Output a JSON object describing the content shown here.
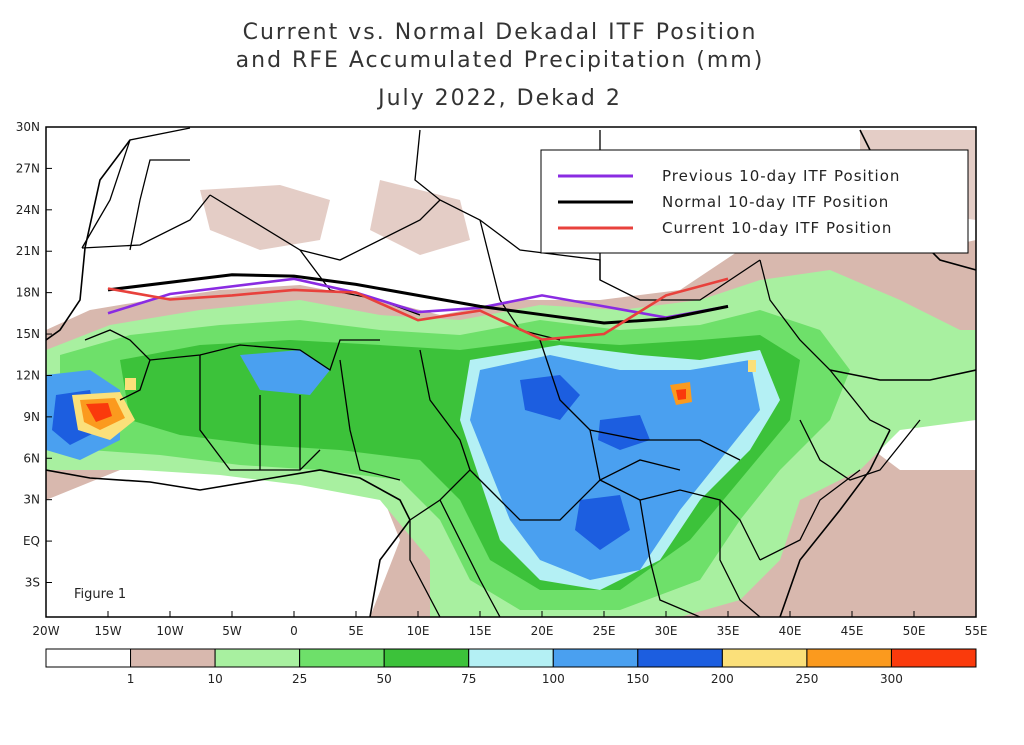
{
  "title": {
    "line1": "Current vs. Normal Dekadal ITF Position",
    "line2": "and RFE Accumulated Precipitation (mm)",
    "line3": "July 2022, Dekad 2"
  },
  "figure_label": "Figure 1",
  "lat_labels": [
    "30N",
    "27N",
    "24N",
    "21N",
    "18N",
    "15N",
    "12N",
    "9N",
    "6N",
    "3N",
    "EQ",
    "3S"
  ],
  "lon_labels": [
    "20W",
    "15W",
    "10W",
    "5W",
    "0",
    "5E",
    "10E",
    "15E",
    "20E",
    "25E",
    "30E",
    "35E",
    "40E",
    "45E",
    "50E",
    "55E"
  ],
  "legend": [
    {
      "label": "Previous 10-day ITF Position",
      "color": "#8a2be2"
    },
    {
      "label": "Normal 10-day ITF Position",
      "color": "#000000"
    },
    {
      "label": "Current 10-day ITF Position",
      "color": "#e8413c"
    }
  ],
  "colorbar": {
    "colors": [
      "#ffffff",
      "#d8b8ae",
      "#a8f0a0",
      "#6ee06a",
      "#3cc23a",
      "#b4f0f4",
      "#4aa0f0",
      "#1c5ee0",
      "#fbe07a",
      "#fb9a1e",
      "#fa3a0c"
    ],
    "tick_labels": [
      "1",
      "10",
      "25",
      "50",
      "75",
      "100",
      "150",
      "200",
      "250",
      "300"
    ]
  },
  "lines": {
    "previous": [
      [
        -15,
        16.5
      ],
      [
        -10,
        17.9
      ],
      [
        0,
        19.0
      ],
      [
        5,
        18.0
      ],
      [
        10,
        16.6
      ],
      [
        15,
        16.9
      ],
      [
        20,
        17.8
      ],
      [
        25,
        17.0
      ],
      [
        30,
        16.2
      ],
      [
        35,
        17.0
      ]
    ],
    "normal": [
      [
        -15,
        18.2
      ],
      [
        -5,
        19.3
      ],
      [
        0,
        19.2
      ],
      [
        5,
        18.6
      ],
      [
        10,
        17.8
      ],
      [
        15,
        17.0
      ],
      [
        20,
        16.4
      ],
      [
        25,
        15.8
      ],
      [
        30,
        16.1
      ],
      [
        35,
        17.0
      ]
    ],
    "current": [
      [
        -15,
        18.3
      ],
      [
        -10,
        17.5
      ],
      [
        -5,
        17.8
      ],
      [
        0,
        18.2
      ],
      [
        5,
        18.0
      ],
      [
        10,
        16.0
      ],
      [
        15,
        16.7
      ],
      [
        20,
        14.6
      ],
      [
        25,
        15.0
      ],
      [
        30,
        17.8
      ],
      [
        35,
        19.0
      ]
    ]
  }
}
